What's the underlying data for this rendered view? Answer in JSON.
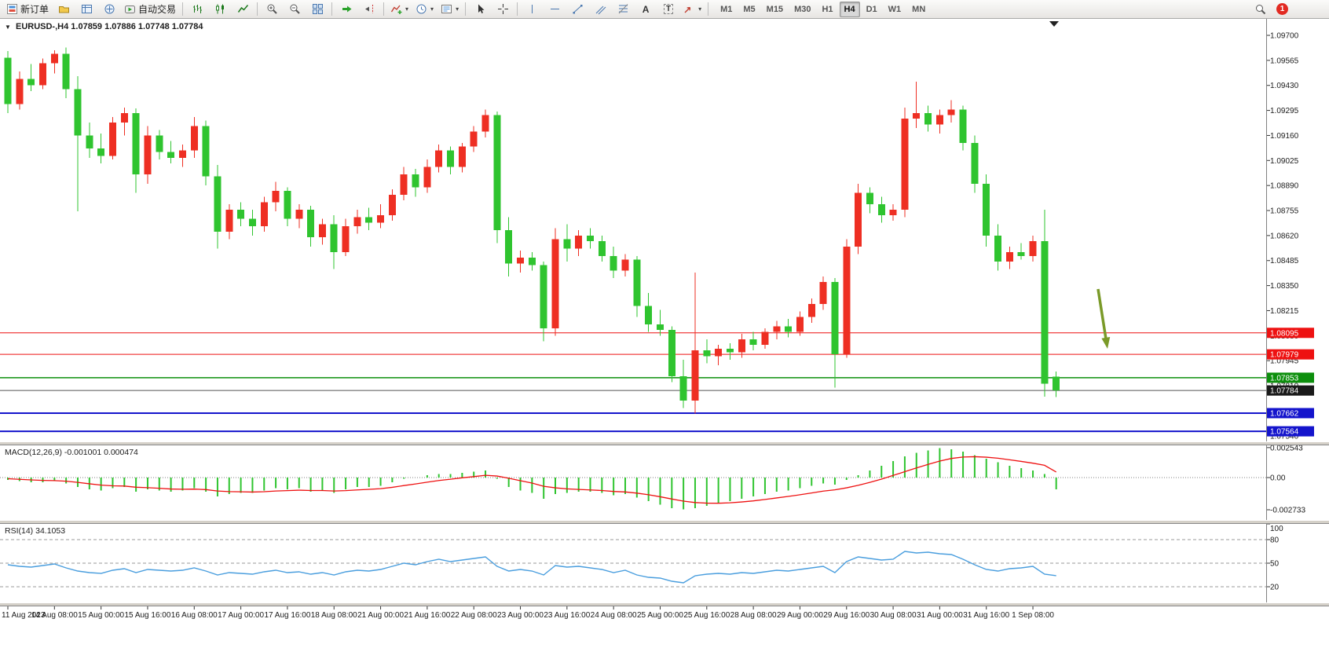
{
  "toolbar": {
    "new_order_label": "新订单",
    "autotrading_label": "自动交易",
    "periods": [
      "M1",
      "M5",
      "M15",
      "M30",
      "H1",
      "H4",
      "D1",
      "W1",
      "MN"
    ],
    "active_period": "H4",
    "notification_count": "1",
    "text_tool_glyph": "A",
    "label_tool_glyph": "T"
  },
  "chart": {
    "title_symbol": "EURUSD-,H4",
    "title_ohlc": "1.07859 1.07886 1.07748 1.07784"
  },
  "chart_data": {
    "type": "candlestick",
    "symbol": "EURUSD-",
    "timeframe": "H4",
    "bull_color": "#ee2f23",
    "bear_color": "#2fc42f",
    "candles": [
      [
        1.0958,
        1.09615,
        1.0928,
        1.0933
      ],
      [
        1.0933,
        1.09505,
        1.093,
        1.09465
      ],
      [
        1.09465,
        1.09545,
        1.094,
        1.0943
      ],
      [
        1.0943,
        1.09575,
        1.0941,
        1.0955
      ],
      [
        1.0955,
        1.0962,
        1.09495,
        1.096
      ],
      [
        1.096,
        1.09635,
        1.0936,
        1.0941
      ],
      [
        1.0941,
        1.0948,
        1.0875,
        1.0916
      ],
      [
        1.0916,
        1.0923,
        1.0904,
        1.0909
      ],
      [
        1.0909,
        1.0917,
        1.0901,
        1.0905
      ],
      [
        1.0905,
        1.0926,
        1.0903,
        1.0923
      ],
      [
        1.0923,
        1.0931,
        1.0916,
        1.0928
      ],
      [
        1.0928,
        1.09305,
        1.0885,
        1.0895
      ],
      [
        1.0895,
        1.0921,
        1.089,
        1.0916
      ],
      [
        1.0916,
        1.0919,
        1.0903,
        1.0907
      ],
      [
        1.0907,
        1.0913,
        1.0901,
        1.0904
      ],
      [
        1.0904,
        1.0911,
        1.0899,
        1.0908
      ],
      [
        1.0908,
        1.0926,
        1.0904,
        1.0921
      ],
      [
        1.0921,
        1.0924,
        1.0889,
        1.0894
      ],
      [
        1.0894,
        1.09,
        1.0855,
        1.0864
      ],
      [
        1.0864,
        1.0879,
        1.086,
        1.0876
      ],
      [
        1.0876,
        1.088,
        1.0867,
        1.0871
      ],
      [
        1.0871,
        1.0876,
        1.0862,
        1.0867
      ],
      [
        1.0867,
        1.0883,
        1.0864,
        1.088
      ],
      [
        1.088,
        1.0891,
        1.0875,
        1.0886
      ],
      [
        1.0886,
        1.0888,
        1.0867,
        1.0871
      ],
      [
        1.0871,
        1.0879,
        1.0866,
        1.0876
      ],
      [
        1.0876,
        1.0878,
        1.0856,
        1.0861
      ],
      [
        1.0861,
        1.0871,
        1.0857,
        1.0868
      ],
      [
        1.0868,
        1.0873,
        1.0844,
        1.0853
      ],
      [
        1.0853,
        1.0871,
        1.0851,
        1.0867
      ],
      [
        1.0867,
        1.0876,
        1.0863,
        1.0872
      ],
      [
        1.0872,
        1.0877,
        1.0865,
        1.0869
      ],
      [
        1.0869,
        1.0879,
        1.0866,
        1.0873
      ],
      [
        1.0873,
        1.0887,
        1.087,
        1.0884
      ],
      [
        1.0884,
        1.0899,
        1.0881,
        1.0895
      ],
      [
        1.0895,
        1.0898,
        1.0883,
        1.0888
      ],
      [
        1.0888,
        1.0903,
        1.0885,
        1.0899
      ],
      [
        1.0899,
        1.0911,
        1.0896,
        1.0908
      ],
      [
        1.0908,
        1.091,
        1.0895,
        1.0899
      ],
      [
        1.0899,
        1.0912,
        1.0896,
        1.091
      ],
      [
        1.091,
        1.0921,
        1.0907,
        1.0918
      ],
      [
        1.0918,
        1.093,
        1.0915,
        1.0927
      ],
      [
        1.0927,
        1.0929,
        1.0858,
        1.0865
      ],
      [
        1.0865,
        1.0872,
        1.084,
        1.0847
      ],
      [
        1.0847,
        1.0854,
        1.0842,
        1.085
      ],
      [
        1.085,
        1.0853,
        1.0843,
        1.0846
      ],
      [
        1.0846,
        1.0848,
        1.0805,
        1.0812
      ],
      [
        1.0812,
        1.0866,
        1.0808,
        1.086
      ],
      [
        1.086,
        1.0868,
        1.0848,
        1.0855
      ],
      [
        1.0855,
        1.0865,
        1.0851,
        1.0862
      ],
      [
        1.0862,
        1.0866,
        1.0855,
        1.0859
      ],
      [
        1.0859,
        1.0862,
        1.0848,
        1.0851
      ],
      [
        1.0851,
        1.0856,
        1.0839,
        1.0843
      ],
      [
        1.0843,
        1.0852,
        1.084,
        1.0849
      ],
      [
        1.0849,
        1.0851,
        1.0818,
        1.0824
      ],
      [
        1.0824,
        1.0831,
        1.081,
        1.0814
      ],
      [
        1.0814,
        1.0822,
        1.0808,
        1.0811
      ],
      [
        1.0811,
        1.0813,
        1.0783,
        1.0786
      ],
      [
        1.0786,
        1.0795,
        1.0769,
        1.0773
      ],
      [
        1.0773,
        1.0842,
        1.0766,
        1.08
      ],
      [
        1.08,
        1.0806,
        1.0793,
        1.0797
      ],
      [
        1.0797,
        1.0803,
        1.0792,
        1.0801
      ],
      [
        1.0801,
        1.0804,
        1.0795,
        1.0799
      ],
      [
        1.0799,
        1.0809,
        1.0796,
        1.0806
      ],
      [
        1.0806,
        1.081,
        1.08,
        1.0803
      ],
      [
        1.0803,
        1.0812,
        1.0801,
        1.081
      ],
      [
        1.081,
        1.0816,
        1.0806,
        1.0813
      ],
      [
        1.0813,
        1.0817,
        1.0807,
        1.081
      ],
      [
        1.081,
        1.0821,
        1.0808,
        1.0818
      ],
      [
        1.0818,
        1.0828,
        1.0815,
        1.0825
      ],
      [
        1.0825,
        1.084,
        1.0822,
        1.0837
      ],
      [
        1.0837,
        1.0839,
        1.078,
        1.0798
      ],
      [
        1.0798,
        1.086,
        1.0796,
        1.0856
      ],
      [
        1.0856,
        1.089,
        1.0852,
        1.0885
      ],
      [
        1.0885,
        1.0888,
        1.0874,
        1.0879
      ],
      [
        1.0879,
        1.0883,
        1.0869,
        1.0873
      ],
      [
        1.0873,
        1.0879,
        1.087,
        1.0876
      ],
      [
        1.0876,
        1.0931,
        1.0872,
        1.0925
      ],
      [
        1.0925,
        1.0945,
        1.092,
        1.0928
      ],
      [
        1.0928,
        1.0932,
        1.0918,
        1.0922
      ],
      [
        1.0922,
        1.093,
        1.0917,
        1.0927
      ],
      [
        1.0927,
        1.0935,
        1.0923,
        1.093
      ],
      [
        1.093,
        1.0932,
        1.0908,
        1.0912
      ],
      [
        1.0912,
        1.0916,
        1.0885,
        1.089
      ],
      [
        1.089,
        1.0895,
        1.0856,
        1.0862
      ],
      [
        1.0862,
        1.0868,
        1.0843,
        1.0848
      ],
      [
        1.0848,
        1.0856,
        1.0844,
        1.0853
      ],
      [
        1.0853,
        1.0858,
        1.0849,
        1.0851
      ],
      [
        1.0851,
        1.0862,
        1.0848,
        1.0859
      ],
      [
        1.0859,
        1.0876,
        1.0775,
        1.0782
      ],
      [
        1.07859,
        1.07886,
        1.07748,
        1.07784
      ]
    ],
    "time_labels": [
      "11 Aug 2023",
      "14 Aug 08:00",
      "15 Aug 00:00",
      "15 Aug 16:00",
      "16 Aug 08:00",
      "17 Aug 00:00",
      "17 Aug 16:00",
      "18 Aug 08:00",
      "21 Aug 00:00",
      "21 Aug 16:00",
      "22 Aug 08:00",
      "23 Aug 00:00",
      "23 Aug 16:00",
      "24 Aug 08:00",
      "25 Aug 00:00",
      "25 Aug 16:00",
      "28 Aug 08:00",
      "29 Aug 00:00",
      "29 Aug 16:00",
      "30 Aug 08:00",
      "31 Aug 00:00",
      "31 Aug 16:00",
      "1 Sep 08:00"
    ],
    "label_every": 4,
    "y_ticks": [
      "1.09700",
      "1.09565",
      "1.09430",
      "1.09295",
      "1.09160",
      "1.09025",
      "1.08890",
      "1.08755",
      "1.08620",
      "1.08485",
      "1.08350",
      "1.08215",
      "1.08080",
      "1.07945",
      "1.07810",
      "1.07675",
      "1.07540"
    ],
    "price_lines": [
      {
        "label": "1.08095",
        "price": 1.08095,
        "color": "#ee1111",
        "width": 1
      },
      {
        "label": "1.07979",
        "price": 1.07979,
        "color": "#ee1111",
        "width": 1
      },
      {
        "label": "1.07853",
        "price": 1.07853,
        "color": "#0d8f0d",
        "width": 1.5
      },
      {
        "label": "1.07662",
        "price": 1.07662,
        "color": "#1414cc",
        "width": 2
      },
      {
        "label": "1.07564",
        "price": 1.07564,
        "color": "#1414cc",
        "width": 2
      }
    ],
    "current_price": {
      "label": "1.07784",
      "price": 1.07784,
      "badge_color": "#1a1a1a"
    },
    "arrow_annotation": {
      "color": "#7a9a28"
    },
    "macd": {
      "label": "MACD(12,26,9)",
      "values_text": "-0.001001 0.000474",
      "histogram_color": "#2fc42f",
      "signal_color": "#ee1111",
      "scale_labels": [
        "0.002543",
        "0.00",
        "-0.002733"
      ],
      "scale_values": [
        0.002543,
        0,
        -0.002733
      ],
      "histogram": [
        -0.0002,
        -0.0003,
        -0.0004,
        -0.0004,
        -0.0003,
        -0.0005,
        -0.0008,
        -0.001,
        -0.0011,
        -0.0009,
        -0.0008,
        -0.0012,
        -0.001,
        -0.0011,
        -0.0012,
        -0.0011,
        -0.0009,
        -0.0012,
        -0.0016,
        -0.0014,
        -0.0013,
        -0.0013,
        -0.0011,
        -0.0009,
        -0.001,
        -0.0009,
        -0.0012,
        -0.0011,
        -0.0013,
        -0.001,
        -0.0008,
        -0.0008,
        -0.0007,
        -0.0004,
        -0.0001,
        0,
        0.0002,
        0.0003,
        0.0003,
        0.0004,
        0.0005,
        0.0006,
        -0.0001,
        -0.0008,
        -0.0011,
        -0.0013,
        -0.0018,
        -0.0014,
        -0.0013,
        -0.0012,
        -0.0012,
        -0.0013,
        -0.0015,
        -0.0014,
        -0.0017,
        -0.002,
        -0.0023,
        -0.0026,
        -0.0027,
        -0.0026,
        -0.0024,
        -0.0022,
        -0.002,
        -0.0018,
        -0.0016,
        -0.0014,
        -0.0012,
        -0.0011,
        -0.0009,
        -0.0007,
        -0.0005,
        -0.0006,
        -0.0002,
        0.0002,
        0.0006,
        0.001,
        0.0014,
        0.0018,
        0.0021,
        0.0023,
        0.0025,
        0.0024,
        0.0022,
        0.0019,
        0.0016,
        0.0013,
        0.001,
        0.0008,
        0.0006,
        0.0003,
        -0.001
      ],
      "signal": [
        -0.0001,
        -0.00015,
        -0.0002,
        -0.00024,
        -0.00026,
        -0.00031,
        -0.00041,
        -0.00053,
        -0.00064,
        -0.0007,
        -0.00072,
        -0.00082,
        -0.00086,
        -0.00091,
        -0.00097,
        -0.00099,
        -0.00098,
        -0.00102,
        -0.00114,
        -0.00119,
        -0.00121,
        -0.00123,
        -0.0012,
        -0.00114,
        -0.00111,
        -0.00107,
        -0.0011,
        -0.0011,
        -0.00114,
        -0.00111,
        -0.00105,
        -0.001,
        -0.00094,
        -0.00083,
        -0.00068,
        -0.00054,
        -0.00039,
        -0.00025,
        -0.00014,
        -2e-05,
        8e-05,
        0.00019,
        0.00013,
        -6e-05,
        -0.00027,
        -0.00047,
        -0.00074,
        -0.00087,
        -0.00096,
        -0.00101,
        -0.00105,
        -0.0011,
        -0.00118,
        -0.00122,
        -0.00132,
        -0.00146,
        -0.00163,
        -0.00182,
        -0.002,
        -0.00212,
        -0.00217,
        -0.00218,
        -0.00214,
        -0.00207,
        -0.00198,
        -0.00186,
        -0.00173,
        -0.0016,
        -0.00146,
        -0.00131,
        -0.00115,
        -0.00104,
        -0.00087,
        -0.00066,
        -0.00041,
        -0.00013,
        0.00018,
        0.0005,
        0.00082,
        0.00112,
        0.0014,
        0.00162,
        0.00174,
        0.00177,
        0.00173,
        0.00164,
        0.00151,
        0.00137,
        0.00122,
        0.00104,
        0.00047
      ]
    },
    "rsi": {
      "label": "RSI(14)",
      "value_text": "34.1053",
      "line_color": "#4a9ede",
      "levels": [
        80,
        50,
        20
      ],
      "scale_labels": [
        "100",
        "80",
        "50",
        "20"
      ],
      "values": [
        48,
        46,
        45,
        47,
        49,
        44,
        40,
        38,
        37,
        41,
        43,
        38,
        42,
        41,
        40,
        41,
        44,
        40,
        35,
        38,
        37,
        36,
        39,
        41,
        38,
        39,
        36,
        38,
        35,
        39,
        41,
        40,
        42,
        46,
        50,
        48,
        52,
        55,
        52,
        54,
        56,
        58,
        46,
        40,
        42,
        40,
        35,
        47,
        45,
        46,
        44,
        42,
        38,
        41,
        35,
        32,
        31,
        27,
        25,
        34,
        36,
        37,
        36,
        38,
        37,
        39,
        41,
        40,
        42,
        44,
        46,
        38,
        52,
        58,
        56,
        54,
        55,
        65,
        63,
        64,
        62,
        61,
        55,
        48,
        42,
        40,
        43,
        44,
        46,
        36,
        34.1
      ]
    }
  }
}
